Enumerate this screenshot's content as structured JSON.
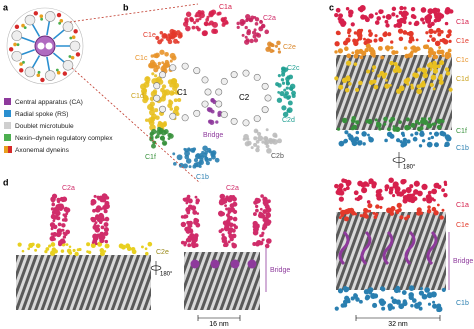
{
  "panel_labels": [
    "a",
    "b",
    "c",
    "d"
  ],
  "panel_a": {
    "legend": [
      "Central apparatus (CA)",
      "Radial spoke (RS)",
      "Doublet microtubule",
      "Nexin–dynein regulatory complex",
      "Axonemal dyneins"
    ]
  },
  "panel_b": {
    "labels": [
      "C1a",
      "C2a",
      "C1e",
      "C1c",
      "C2e",
      "C2c",
      "C1d",
      "C1",
      "C2",
      "C2d",
      "Bridge",
      "C2b",
      "C1f",
      "C1b"
    ]
  },
  "panel_c": {
    "top_labels": [
      "C1a",
      "C1e",
      "C1c",
      "C1d",
      "C1f",
      "C1b"
    ],
    "rotation": "180°",
    "bottom_labels": [
      "C1a",
      "C1e",
      "Bridge",
      "C1b"
    ],
    "scale": "32 nm"
  },
  "panel_d": {
    "labels": [
      "C2a",
      "C2e",
      "180°",
      "C2a",
      "Bridge"
    ],
    "scale": "16 nm"
  }
}
